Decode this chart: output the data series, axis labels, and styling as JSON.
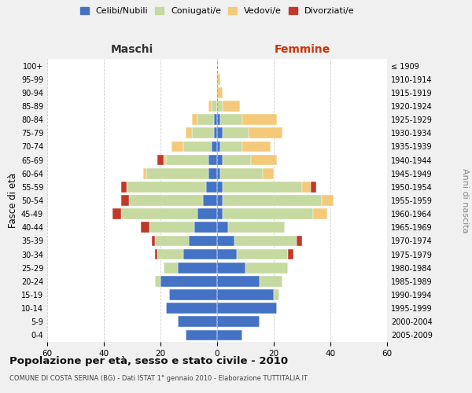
{
  "age_groups": [
    "0-4",
    "5-9",
    "10-14",
    "15-19",
    "20-24",
    "25-29",
    "30-34",
    "35-39",
    "40-44",
    "45-49",
    "50-54",
    "55-59",
    "60-64",
    "65-69",
    "70-74",
    "75-79",
    "80-84",
    "85-89",
    "90-94",
    "95-99",
    "100+"
  ],
  "birth_years": [
    "2005-2009",
    "2000-2004",
    "1995-1999",
    "1990-1994",
    "1985-1989",
    "1980-1984",
    "1975-1979",
    "1970-1974",
    "1965-1969",
    "1960-1964",
    "1955-1959",
    "1950-1954",
    "1945-1949",
    "1940-1944",
    "1935-1939",
    "1930-1934",
    "1925-1929",
    "1920-1924",
    "1915-1919",
    "1910-1914",
    "≤ 1909"
  ],
  "maschi": {
    "celibi": [
      11,
      14,
      18,
      17,
      20,
      14,
      12,
      10,
      8,
      7,
      5,
      4,
      3,
      3,
      2,
      1,
      1,
      0,
      0,
      0,
      0
    ],
    "coniugati": [
      0,
      0,
      0,
      0,
      2,
      5,
      9,
      12,
      16,
      27,
      26,
      28,
      22,
      15,
      10,
      8,
      6,
      2,
      0,
      0,
      0
    ],
    "vedovi": [
      0,
      0,
      0,
      0,
      0,
      0,
      0,
      0,
      0,
      0,
      0,
      0,
      1,
      1,
      4,
      2,
      2,
      1,
      0,
      0,
      0
    ],
    "divorziati": [
      0,
      0,
      0,
      0,
      0,
      0,
      1,
      1,
      3,
      3,
      3,
      2,
      0,
      2,
      0,
      0,
      0,
      0,
      0,
      0,
      0
    ]
  },
  "femmine": {
    "nubili": [
      9,
      15,
      21,
      20,
      15,
      10,
      7,
      6,
      4,
      2,
      2,
      2,
      1,
      2,
      1,
      2,
      1,
      0,
      0,
      0,
      0
    ],
    "coniugate": [
      0,
      0,
      0,
      2,
      8,
      15,
      18,
      22,
      20,
      32,
      35,
      28,
      15,
      10,
      8,
      9,
      8,
      2,
      0,
      0,
      0
    ],
    "vedove": [
      0,
      0,
      0,
      0,
      0,
      0,
      0,
      0,
      0,
      5,
      4,
      3,
      4,
      9,
      10,
      12,
      12,
      6,
      2,
      1,
      0
    ],
    "divorziate": [
      0,
      0,
      0,
      0,
      0,
      0,
      2,
      2,
      0,
      0,
      0,
      2,
      0,
      0,
      0,
      0,
      0,
      0,
      0,
      0,
      0
    ]
  },
  "colors": {
    "celibi_nubili": "#4472c4",
    "coniugati": "#c5d9a0",
    "vedovi": "#f5c97a",
    "divorziati": "#c0392b"
  },
  "xlim": 60,
  "title": "Popolazione per età, sesso e stato civile - 2010",
  "subtitle": "COMUNE DI COSTA SERINA (BG) - Dati ISTAT 1° gennaio 2010 - Elaborazione TUTTITALIA.IT",
  "ylabel_left": "Fasce di età",
  "ylabel_right": "Anni di nascita",
  "xlabel_maschi": "Maschi",
  "xlabel_femmine": "Femmine",
  "bg_color": "#f0f0f0",
  "plot_bg": "#ffffff",
  "legend_labels": [
    "Celibi/Nubili",
    "Coniugati/e",
    "Vedovi/e",
    "Divorziati/e"
  ]
}
